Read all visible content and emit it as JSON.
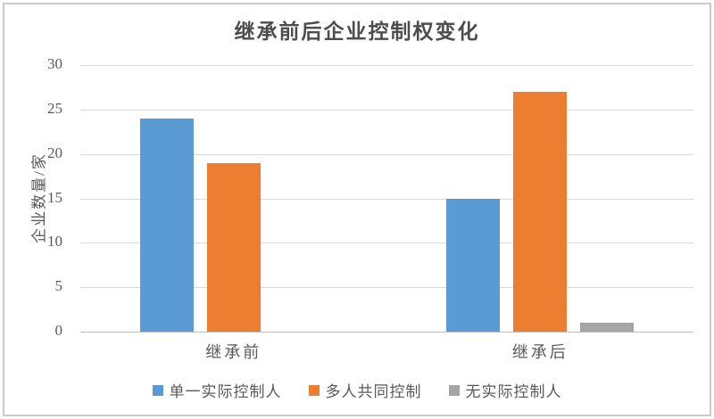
{
  "chart_data": {
    "type": "bar",
    "title": "继承前后企业控制权变化",
    "xlabel": "",
    "ylabel": "企业数量/家",
    "categories": [
      "继承前",
      "继承后"
    ],
    "series": [
      {
        "name": "单一实际控制人",
        "color": "#5B9BD5",
        "values": [
          24,
          15
        ]
      },
      {
        "name": "多人共同控制",
        "color": "#ED7D31",
        "values": [
          19,
          27
        ]
      },
      {
        "name": "无实际控制人",
        "color": "#A5A5A5",
        "values": [
          0,
          1
        ]
      }
    ],
    "ylim": [
      0,
      30
    ],
    "yticks": [
      0,
      5,
      10,
      15,
      20,
      25,
      30
    ],
    "grid": true,
    "legend_position": "bottom"
  },
  "colors": {
    "gridline": "#D9D9D9",
    "axis_line": "#BFBFBF",
    "text": "#595959",
    "frame_border": "#C9CACB",
    "background": "#FFFFFF"
  }
}
